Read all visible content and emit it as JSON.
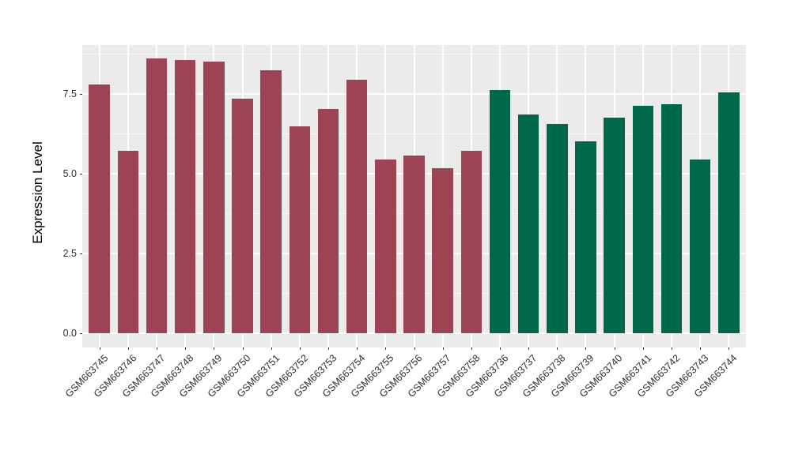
{
  "figure": {
    "background_color": "#FFFFFF",
    "panel_background_color": "#EBEBEB",
    "gridline_color": "#FFFFFF"
  },
  "chart_data": {
    "type": "bar",
    "title": "",
    "xlabel": "",
    "ylabel": "Expression Level",
    "ylim": [
      -0.45,
      9.03
    ],
    "grid": true,
    "legend_position": "none",
    "yticks": [
      {
        "value": 0.0,
        "label": "0.0"
      },
      {
        "value": 2.5,
        "label": "2.5"
      },
      {
        "value": 5.0,
        "label": "5.0"
      },
      {
        "value": 7.5,
        "label": "7.5"
      }
    ],
    "group_colors": {
      "group1": "#9D4454",
      "group2": "#00684A"
    },
    "bars": [
      {
        "label": "GSM663745",
        "value": 7.8,
        "group": "group1"
      },
      {
        "label": "GSM663746",
        "value": 5.72,
        "group": "group1"
      },
      {
        "label": "GSM663747",
        "value": 8.6,
        "group": "group1"
      },
      {
        "label": "GSM663748",
        "value": 8.57,
        "group": "group1"
      },
      {
        "label": "GSM663749",
        "value": 8.5,
        "group": "group1"
      },
      {
        "label": "GSM663750",
        "value": 7.35,
        "group": "group1"
      },
      {
        "label": "GSM663751",
        "value": 8.23,
        "group": "group1"
      },
      {
        "label": "GSM663752",
        "value": 6.48,
        "group": "group1"
      },
      {
        "label": "GSM663753",
        "value": 7.02,
        "group": "group1"
      },
      {
        "label": "GSM663754",
        "value": 7.94,
        "group": "group1"
      },
      {
        "label": "GSM663755",
        "value": 5.45,
        "group": "group1"
      },
      {
        "label": "GSM663756",
        "value": 5.57,
        "group": "group1"
      },
      {
        "label": "GSM663757",
        "value": 5.16,
        "group": "group1"
      },
      {
        "label": "GSM663758",
        "value": 5.72,
        "group": "group1"
      },
      {
        "label": "GSM663736",
        "value": 7.62,
        "group": "group2"
      },
      {
        "label": "GSM663737",
        "value": 6.86,
        "group": "group2"
      },
      {
        "label": "GSM663738",
        "value": 6.55,
        "group": "group2"
      },
      {
        "label": "GSM663739",
        "value": 6.0,
        "group": "group2"
      },
      {
        "label": "GSM663740",
        "value": 6.76,
        "group": "group2"
      },
      {
        "label": "GSM663741",
        "value": 7.12,
        "group": "group2"
      },
      {
        "label": "GSM663742",
        "value": 7.17,
        "group": "group2"
      },
      {
        "label": "GSM663743",
        "value": 5.45,
        "group": "group2"
      },
      {
        "label": "GSM663744",
        "value": 7.55,
        "group": "group2"
      }
    ]
  }
}
